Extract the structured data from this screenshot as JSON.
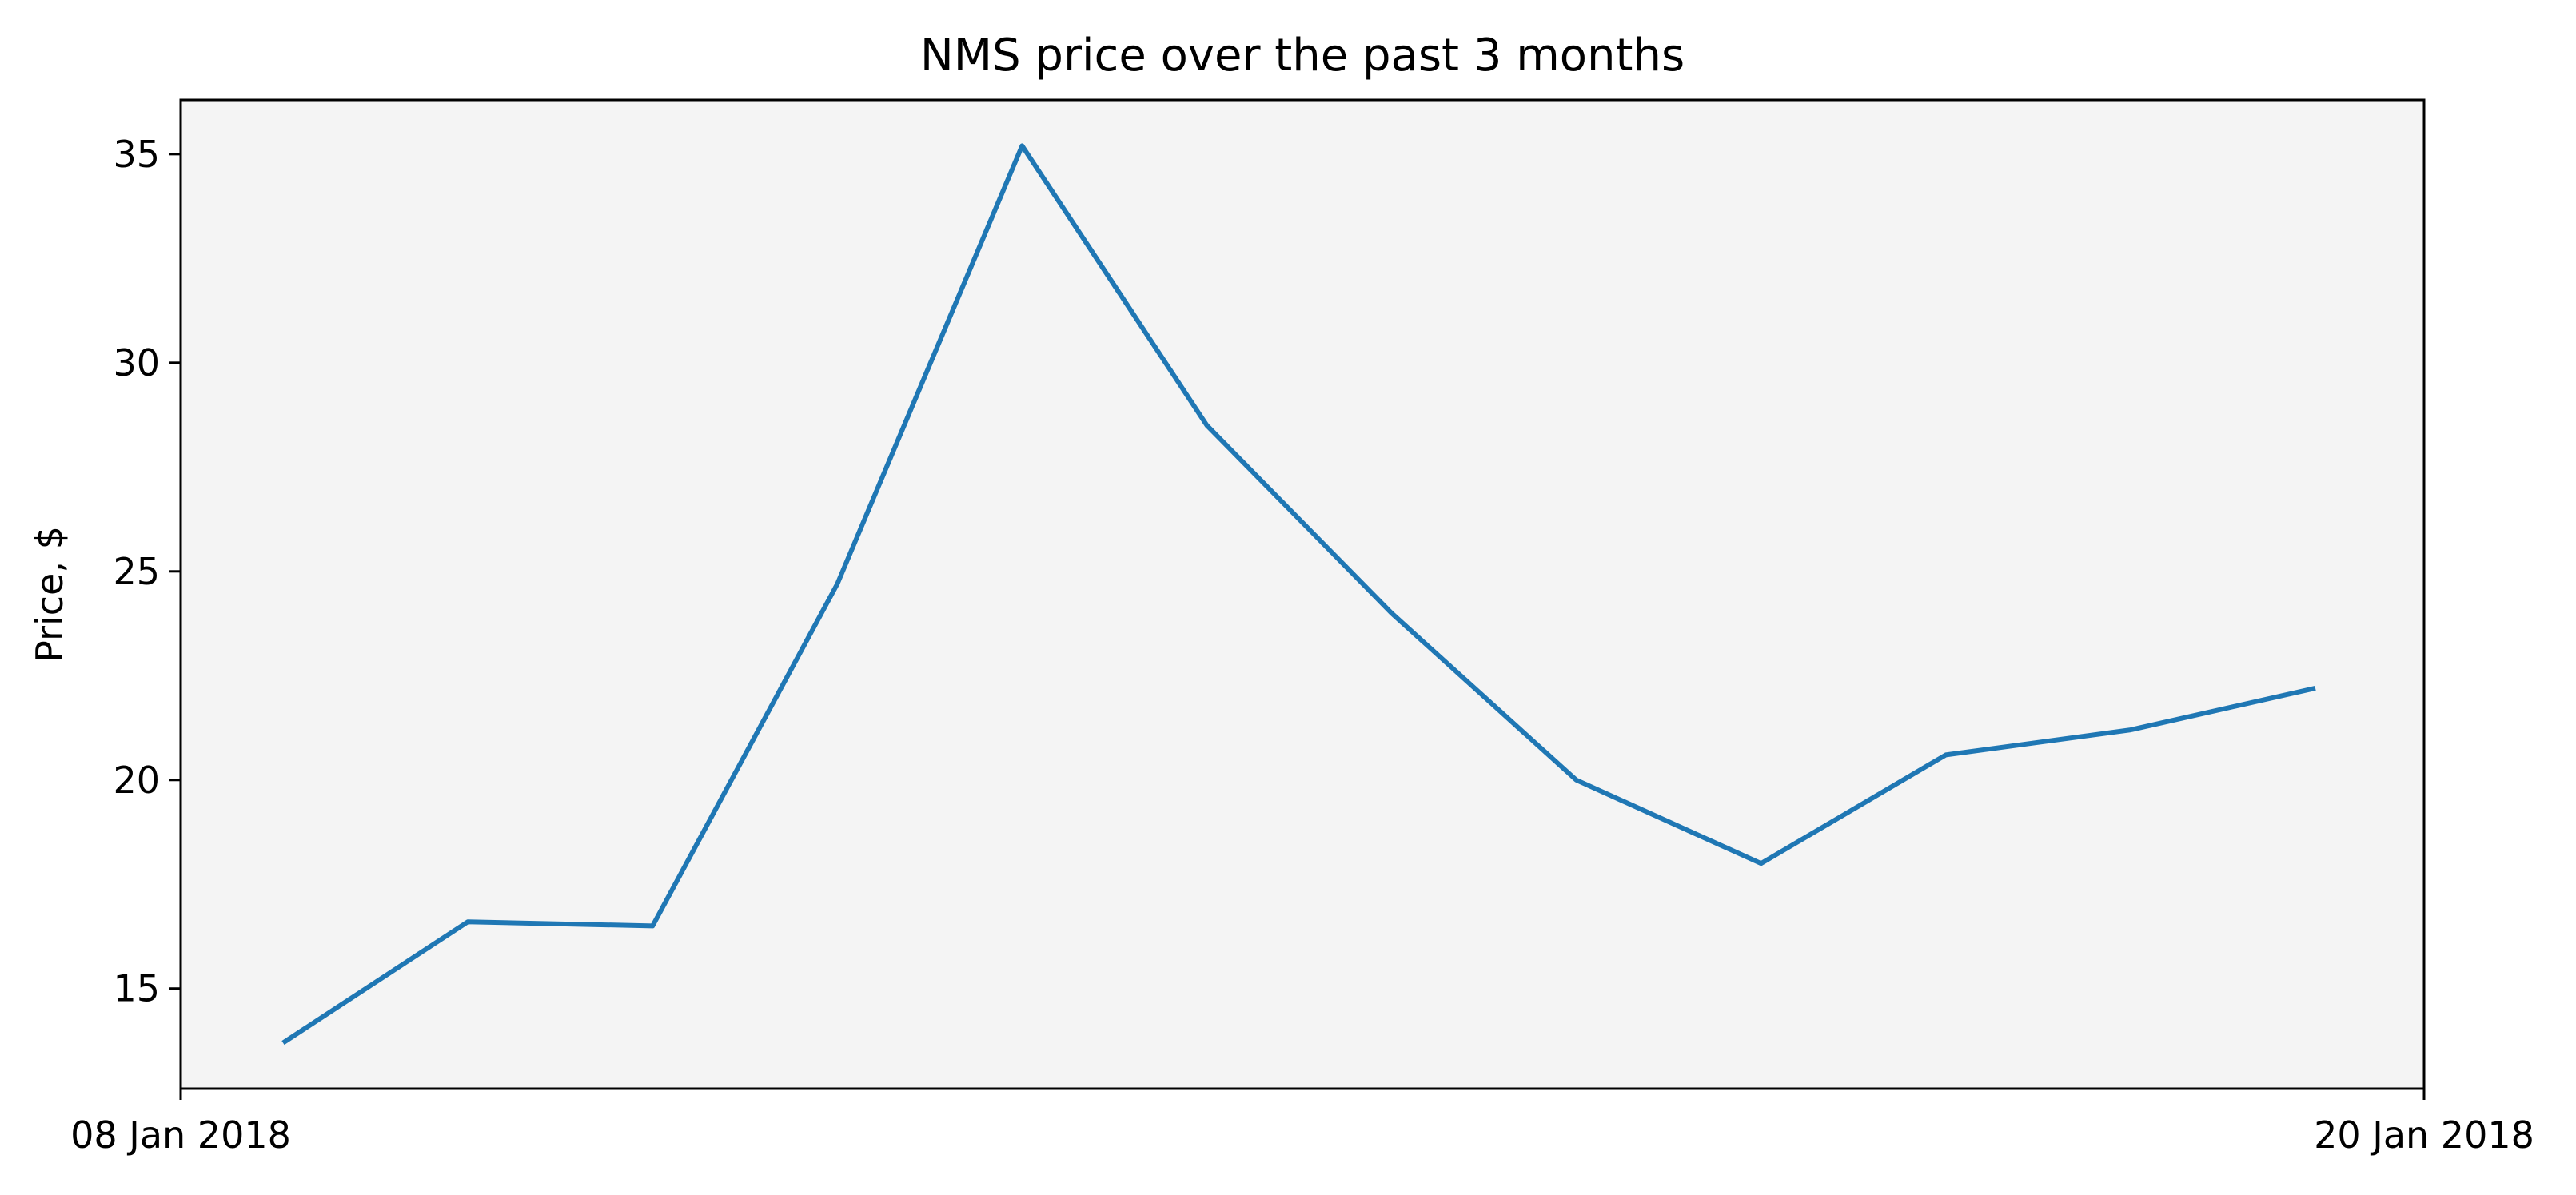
{
  "chart_data": {
    "type": "line",
    "title": "NMS price over the past 3 months",
    "xlabel": "",
    "ylabel": "Price, $",
    "x_ticks": [
      {
        "label": "08 Jan 2018"
      },
      {
        "label": "20 Jan 2018"
      }
    ],
    "y_ticks": [
      15,
      20,
      25,
      30,
      35
    ],
    "ylim": [
      12.6,
      36.3
    ],
    "grid": false,
    "background_color": "#f4f4f4",
    "series": [
      {
        "color": "#1f77b4",
        "values": [
          13.7,
          16.6,
          16.5,
          24.7,
          35.2,
          28.5,
          24.0,
          20.0,
          18.0,
          20.6,
          21.2,
          22.2
        ]
      }
    ]
  }
}
